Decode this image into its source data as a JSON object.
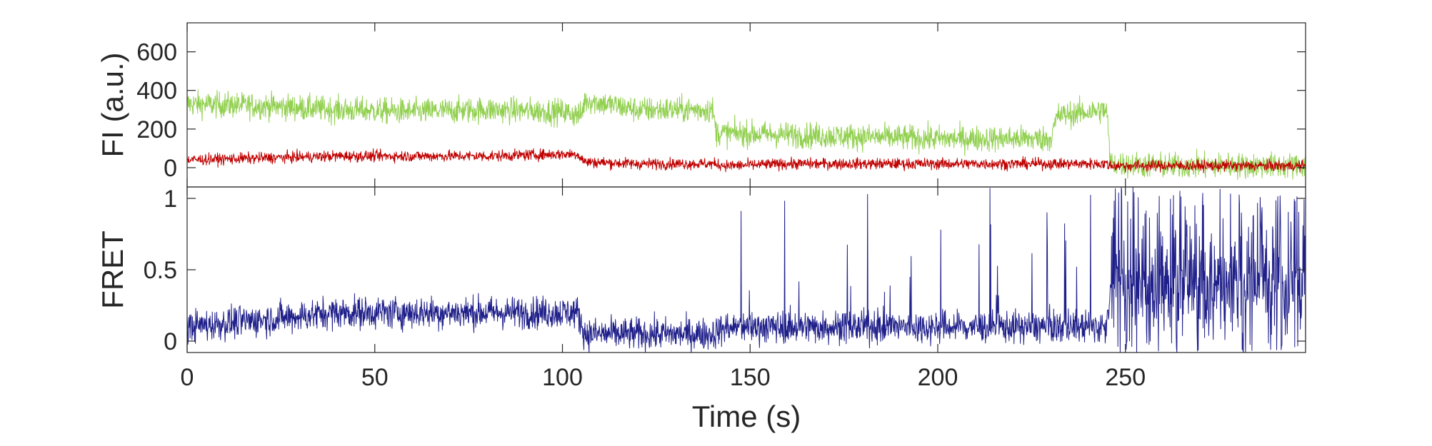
{
  "chart_data": [
    {
      "type": "line",
      "panel": "top",
      "ylabel": "FI (a.u.)",
      "xlim": [
        0,
        298
      ],
      "ylim": [
        -100,
        750
      ],
      "yticks": [
        0,
        200,
        400,
        600
      ],
      "grid": false,
      "series": [
        {
          "color": "#92d050",
          "x": [
            0,
            20,
            40,
            60,
            80,
            100,
            105,
            106,
            120,
            140,
            141,
            160,
            180,
            200,
            220,
            230,
            232,
            245,
            246,
            260,
            280,
            298
          ],
          "y": [
            330,
            320,
            300,
            290,
            300,
            290,
            270,
            350,
            300,
            300,
            180,
            170,
            160,
            150,
            150,
            150,
            270,
            300,
            20,
            10,
            10,
            10
          ]
        },
        {
          "color": "#c00000",
          "x": [
            0,
            20,
            40,
            60,
            80,
            100,
            104,
            106,
            120,
            140,
            144,
            160,
            180,
            200,
            220,
            245,
            246,
            260,
            280,
            298
          ],
          "y": [
            40,
            50,
            60,
            60,
            60,
            70,
            70,
            30,
            20,
            20,
            10,
            20,
            20,
            20,
            20,
            20,
            10,
            10,
            10,
            10
          ]
        }
      ]
    },
    {
      "type": "line",
      "panel": "bottom",
      "xlabel": "Time (s)",
      "ylabel": "FRET",
      "xlim": [
        0,
        298
      ],
      "ylim": [
        -0.08,
        1.08
      ],
      "yticks": [
        0,
        0.5,
        1
      ],
      "xticks": [
        0,
        50,
        100,
        150,
        200,
        250
      ],
      "grid": false,
      "series": [
        {
          "color": "#1f1f8a",
          "x": [
            0,
            20,
            40,
            60,
            80,
            100,
            104,
            106,
            120,
            140,
            144,
            160,
            180,
            200,
            220,
            245,
            246,
            260,
            280,
            298
          ],
          "y": [
            0.1,
            0.15,
            0.2,
            0.2,
            0.2,
            0.2,
            0.2,
            0.05,
            0.05,
            0.05,
            0.1,
            0.1,
            0.1,
            0.1,
            0.1,
            0.1,
            0.4,
            0.4,
            0.4,
            0.4
          ]
        }
      ]
    }
  ]
}
